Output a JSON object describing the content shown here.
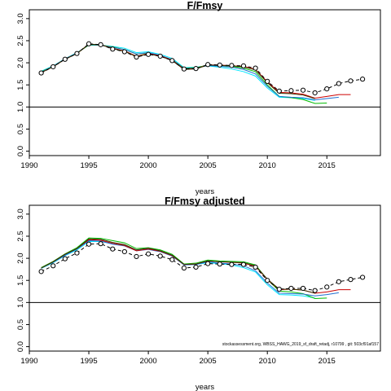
{
  "chart_data": [
    {
      "type": "line",
      "title": "F/Fmsy",
      "xlabel": "years",
      "ylabel": "",
      "xlim": [
        1990,
        2019.5
      ],
      "ylim": [
        -0.1,
        3.2
      ],
      "xticks": [
        "1990",
        "1995",
        "2000",
        "2005",
        "2010",
        "2015"
      ],
      "yticks": [
        "0.0",
        "0.5",
        "1.0",
        "1.5",
        "2.0",
        "2.5",
        "3.0"
      ],
      "reference_line": 1.0,
      "series": [
        {
          "color": "#000000",
          "style": "dashed-circles",
          "x": [
            1991,
            1992,
            1993,
            1994,
            1995,
            1996,
            1997,
            1998,
            1999,
            2000,
            2001,
            2002,
            2003,
            2004,
            2005,
            2006,
            2007,
            2008,
            2009,
            2010,
            2011,
            2012,
            2013,
            2014,
            2015,
            2016,
            2017,
            2018
          ],
          "y": [
            1.77,
            1.91,
            2.08,
            2.21,
            2.43,
            2.41,
            2.31,
            2.25,
            2.13,
            2.19,
            2.15,
            2.05,
            1.86,
            1.87,
            1.96,
            1.95,
            1.94,
            1.93,
            1.88,
            1.58,
            1.36,
            1.37,
            1.38,
            1.32,
            1.41,
            1.53,
            1.59,
            1.63
          ]
        },
        {
          "color": "#00e5ff",
          "x": [
            1991,
            1992,
            1993,
            1994,
            1995,
            1996,
            1997,
            1998,
            1999,
            2000,
            2001,
            2002,
            2003,
            2004,
            2005,
            2006,
            2007,
            2008,
            2009,
            2010,
            2011,
            2012,
            2013,
            2014
          ],
          "y": [
            1.81,
            1.93,
            2.09,
            2.23,
            2.4,
            2.4,
            2.37,
            2.33,
            2.23,
            2.25,
            2.19,
            2.1,
            1.89,
            1.9,
            1.93,
            1.9,
            1.86,
            1.8,
            1.7,
            1.43,
            1.22,
            1.21,
            1.19,
            1.15
          ]
        },
        {
          "color": "#00bb00",
          "x": [
            1991,
            1992,
            1993,
            1994,
            1995,
            1996,
            1997,
            1998,
            1999,
            2000,
            2001,
            2002,
            2003,
            2004,
            2005,
            2006,
            2007,
            2008,
            2009,
            2010,
            2011,
            2012,
            2013,
            2014,
            2015
          ],
          "y": [
            1.8,
            1.92,
            2.09,
            2.22,
            2.4,
            2.4,
            2.36,
            2.3,
            2.2,
            2.22,
            2.16,
            2.07,
            1.88,
            1.89,
            1.95,
            1.94,
            1.92,
            1.88,
            1.8,
            1.5,
            1.24,
            1.21,
            1.17,
            1.08,
            1.09
          ]
        },
        {
          "color": "#1f6fd0",
          "x": [
            1991,
            1992,
            1993,
            1994,
            1995,
            1996,
            1997,
            1998,
            1999,
            2000,
            2001,
            2002,
            2003,
            2004,
            2005,
            2006,
            2007,
            2008,
            2009,
            2010,
            2011,
            2012,
            2013,
            2014,
            2015,
            2016
          ],
          "y": [
            1.79,
            1.92,
            2.09,
            2.22,
            2.41,
            2.4,
            2.35,
            2.3,
            2.2,
            2.23,
            2.17,
            2.07,
            1.87,
            1.88,
            1.94,
            1.92,
            1.9,
            1.85,
            1.75,
            1.47,
            1.24,
            1.22,
            1.21,
            1.16,
            1.19,
            1.22
          ]
        },
        {
          "color": "#cc0000",
          "x": [
            1991,
            1992,
            1993,
            1994,
            1995,
            1996,
            1997,
            1998,
            1999,
            2000,
            2001,
            2002,
            2003,
            2004,
            2005,
            2006,
            2007,
            2008,
            2009,
            2010,
            2011,
            2012,
            2013,
            2014,
            2015,
            2016,
            2017
          ],
          "y": [
            1.78,
            1.91,
            2.08,
            2.21,
            2.42,
            2.41,
            2.33,
            2.27,
            2.15,
            2.21,
            2.16,
            2.06,
            1.86,
            1.87,
            1.95,
            1.95,
            1.93,
            1.92,
            1.85,
            1.57,
            1.33,
            1.32,
            1.29,
            1.2,
            1.24,
            1.28,
            1.28
          ]
        },
        {
          "color": "#333300",
          "x": [
            1991,
            1992,
            1993,
            1994,
            1995,
            1996,
            1997,
            1998,
            1999,
            2000,
            2001,
            2002,
            2003,
            2004,
            2005,
            2006,
            2007,
            2008,
            2009,
            2010,
            2011,
            2012,
            2013,
            2014
          ],
          "y": [
            1.78,
            1.91,
            2.08,
            2.21,
            2.42,
            2.41,
            2.32,
            2.26,
            2.14,
            2.2,
            2.15,
            2.05,
            1.85,
            1.86,
            1.95,
            1.94,
            1.93,
            1.91,
            1.84,
            1.55,
            1.31,
            1.3,
            1.27,
            1.19
          ]
        }
      ]
    },
    {
      "type": "line",
      "title": "F/Fmsy adjusted",
      "xlabel": "years",
      "ylabel": "",
      "xlim": [
        1990,
        2019.5
      ],
      "ylim": [
        -0.1,
        3.2
      ],
      "xticks": [
        "1990",
        "1995",
        "2000",
        "2005",
        "2010",
        "2015"
      ],
      "yticks": [
        "0.0",
        "0.5",
        "1.0",
        "1.5",
        "2.0",
        "2.5",
        "3.0"
      ],
      "reference_line": 1.0,
      "annotation": "stockassessment.org,  WBSS_HAWG_2019_sf_draft_retadj, r10799 ,  git: 503cf91af157",
      "series": [
        {
          "color": "#000000",
          "style": "dashed-circles",
          "x": [
            1991,
            1992,
            1993,
            1994,
            1995,
            1996,
            1997,
            1998,
            1999,
            2000,
            2001,
            2002,
            2003,
            2004,
            2005,
            2006,
            2007,
            2008,
            2009,
            2010,
            2011,
            2012,
            2013,
            2014,
            2015,
            2016,
            2017,
            2018
          ],
          "y": [
            1.7,
            1.83,
            1.99,
            2.12,
            2.32,
            2.33,
            2.21,
            2.15,
            2.04,
            2.1,
            2.05,
            1.97,
            1.78,
            1.8,
            1.88,
            1.87,
            1.86,
            1.86,
            1.8,
            1.5,
            1.3,
            1.32,
            1.32,
            1.27,
            1.35,
            1.47,
            1.52,
            1.57
          ]
        },
        {
          "color": "#00e5ff",
          "x": [
            1991,
            1992,
            1993,
            1994,
            1995,
            1996,
            1997,
            1998,
            1999,
            2000,
            2001,
            2002,
            2003,
            2004,
            2005,
            2006,
            2007,
            2008,
            2009,
            2010,
            2011,
            2012,
            2013,
            2014
          ],
          "y": [
            1.77,
            1.9,
            2.06,
            2.19,
            2.38,
            2.38,
            2.33,
            2.3,
            2.19,
            2.21,
            2.16,
            2.07,
            1.86,
            1.86,
            1.9,
            1.88,
            1.85,
            1.79,
            1.69,
            1.4,
            1.18,
            1.17,
            1.15,
            1.1
          ]
        },
        {
          "color": "#00bb00",
          "x": [
            1991,
            1992,
            1993,
            1994,
            1995,
            1996,
            1997,
            1998,
            1999,
            2000,
            2001,
            2002,
            2003,
            2004,
            2005,
            2006,
            2007,
            2008,
            2009,
            2010,
            2011,
            2012,
            2013,
            2014,
            2015
          ],
          "y": [
            1.79,
            1.93,
            2.1,
            2.24,
            2.46,
            2.45,
            2.4,
            2.35,
            2.22,
            2.24,
            2.19,
            2.09,
            1.87,
            1.89,
            1.96,
            1.94,
            1.93,
            1.92,
            1.85,
            1.52,
            1.26,
            1.24,
            1.2,
            1.09,
            1.1
          ]
        },
        {
          "color": "#1f6fd0",
          "x": [
            1991,
            1992,
            1993,
            1994,
            1995,
            1996,
            1997,
            1998,
            1999,
            2000,
            2001,
            2002,
            2003,
            2004,
            2005,
            2006,
            2007,
            2008,
            2009,
            2010,
            2011,
            2012,
            2013,
            2014,
            2015,
            2016
          ],
          "y": [
            1.78,
            1.91,
            2.07,
            2.21,
            2.4,
            2.39,
            2.32,
            2.28,
            2.17,
            2.2,
            2.15,
            2.05,
            1.85,
            1.86,
            1.92,
            1.89,
            1.87,
            1.83,
            1.72,
            1.44,
            1.21,
            1.2,
            1.19,
            1.15,
            1.18,
            1.22
          ]
        },
        {
          "color": "#cc0000",
          "x": [
            1991,
            1992,
            1993,
            1994,
            1995,
            1996,
            1997,
            1998,
            1999,
            2000,
            2001,
            2002,
            2003,
            2004,
            2005,
            2006,
            2007,
            2008,
            2009,
            2010,
            2011,
            2012,
            2013,
            2014,
            2015,
            2016,
            2017
          ],
          "y": [
            1.78,
            1.92,
            2.09,
            2.22,
            2.42,
            2.41,
            2.34,
            2.29,
            2.17,
            2.21,
            2.16,
            2.06,
            1.86,
            1.87,
            1.94,
            1.92,
            1.91,
            1.89,
            1.82,
            1.52,
            1.29,
            1.3,
            1.28,
            1.21,
            1.24,
            1.29,
            1.29
          ]
        },
        {
          "color": "#333300",
          "x": [
            1991,
            1992,
            1993,
            1994,
            1995,
            1996,
            1997,
            1998,
            1999,
            2000,
            2001,
            2002,
            2003,
            2004,
            2005,
            2006,
            2007,
            2008,
            2009,
            2010,
            2011,
            2012,
            2013,
            2014
          ],
          "y": [
            1.78,
            1.92,
            2.09,
            2.22,
            2.44,
            2.43,
            2.36,
            2.31,
            2.19,
            2.23,
            2.17,
            2.07,
            1.86,
            1.87,
            1.94,
            1.92,
            1.91,
            1.9,
            1.83,
            1.53,
            1.3,
            1.3,
            1.28,
            1.21
          ]
        }
      ]
    }
  ]
}
